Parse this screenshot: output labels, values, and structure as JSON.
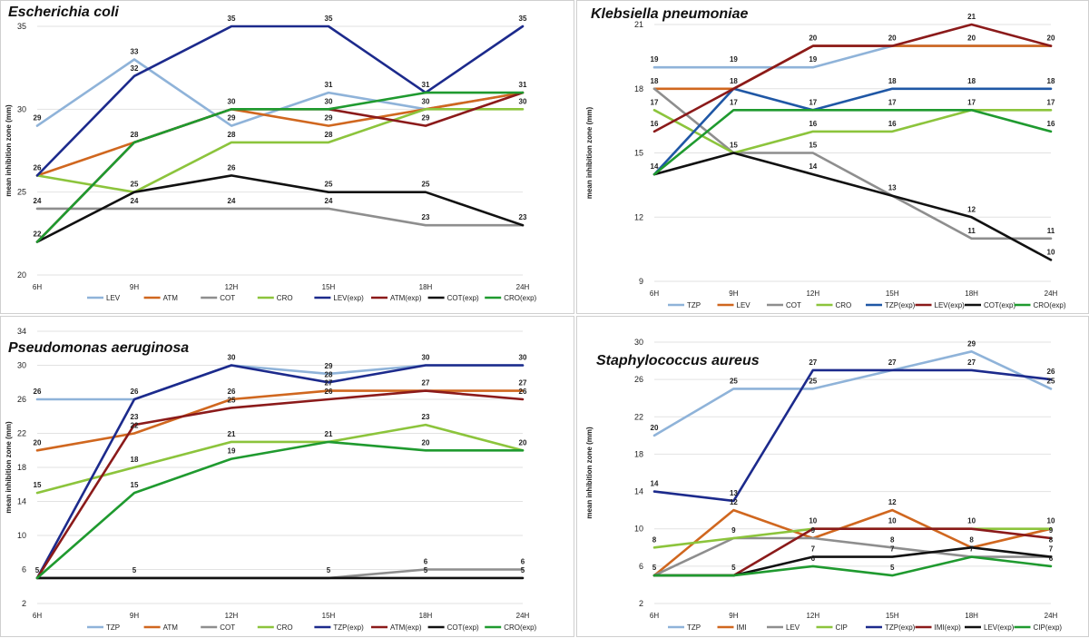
{
  "chart_data": [
    {
      "type": "line",
      "title": "Escherichia coli",
      "ylabel": "mean inhibition zone (mm)",
      "xlabel": "",
      "x": [
        "6H",
        "9H",
        "12H",
        "15H",
        "18H",
        "24H"
      ],
      "ylim": [
        20,
        35
      ],
      "yticks": [
        20,
        25,
        30,
        35
      ],
      "grid": true,
      "legend": "bottom",
      "series": [
        {
          "name": "LEV",
          "color": "#8fb3d9",
          "values": [
            29,
            33,
            29,
            31,
            30,
            31
          ]
        },
        {
          "name": "ATM",
          "color": "#d0671f",
          "values": [
            26,
            28,
            30,
            29,
            30,
            31
          ]
        },
        {
          "name": "COT",
          "color": "#8e8e8e",
          "values": [
            24,
            24,
            24,
            24,
            23,
            23
          ]
        },
        {
          "name": "CRO",
          "color": "#8cc43c",
          "values": [
            26,
            25,
            28,
            28,
            30,
            30
          ]
        },
        {
          "name": "LEV(exp)",
          "color": "#1c2a8c",
          "values": [
            26,
            32,
            35,
            35,
            31,
            35
          ]
        },
        {
          "name": "ATM(exp)",
          "color": "#8b1a1a",
          "values": [
            22,
            28,
            30,
            30,
            29,
            31
          ]
        },
        {
          "name": "COT(exp)",
          "color": "#111111",
          "values": [
            22,
            25,
            26,
            25,
            25,
            23
          ]
        },
        {
          "name": "CRO(exp)",
          "color": "#1f9a2f",
          "values": [
            22,
            28,
            30,
            30,
            31,
            31
          ]
        }
      ],
      "labels": [
        {
          "x": "6H",
          "text": "29"
        },
        {
          "x": "6H",
          "text": "26"
        },
        {
          "x": "6H",
          "text": "24"
        },
        {
          "x": "6H",
          "text": "22"
        },
        {
          "x": "9H",
          "text": "33"
        },
        {
          "x": "9H",
          "text": "32"
        },
        {
          "x": "9H",
          "text": "28"
        },
        {
          "x": "9H",
          "text": "25"
        },
        {
          "x": "9H",
          "text": "24"
        },
        {
          "x": "12H",
          "text": "35"
        },
        {
          "x": "12H",
          "text": "30"
        },
        {
          "x": "12H",
          "text": "29"
        },
        {
          "x": "12H",
          "text": "28"
        },
        {
          "x": "12H",
          "text": "26"
        },
        {
          "x": "12H",
          "text": "24"
        },
        {
          "x": "15H",
          "text": "35"
        },
        {
          "x": "15H",
          "text": "31"
        },
        {
          "x": "15H",
          "text": "30"
        },
        {
          "x": "15H",
          "text": "29"
        },
        {
          "x": "15H",
          "text": "28"
        },
        {
          "x": "15H",
          "text": "25"
        },
        {
          "x": "15H",
          "text": "24"
        },
        {
          "x": "18H",
          "text": "31"
        },
        {
          "x": "18H",
          "text": "30"
        },
        {
          "x": "18H",
          "text": "29"
        },
        {
          "x": "18H",
          "text": "25"
        },
        {
          "x": "18H",
          "text": "23"
        },
        {
          "x": "24H",
          "text": "35"
        },
        {
          "x": "24H",
          "text": "31"
        },
        {
          "x": "24H",
          "text": "30"
        },
        {
          "x": "24H",
          "text": "23"
        }
      ]
    },
    {
      "type": "line",
      "title": "Klebsiella pneumoniae",
      "ylabel": "mean inhibition zone (mm)",
      "xlabel": "",
      "x": [
        "6H",
        "9H",
        "12H",
        "15H",
        "18H",
        "24H"
      ],
      "ylim": [
        9,
        21
      ],
      "yticks": [
        9,
        12,
        15,
        18,
        21
      ],
      "grid": true,
      "legend": "bottom",
      "series": [
        {
          "name": "TZP",
          "color": "#8fb3d9",
          "values": [
            19,
            19,
            19,
            20,
            20,
            20
          ]
        },
        {
          "name": "LEV",
          "color": "#d0671f",
          "values": [
            18,
            18,
            20,
            20,
            20,
            20
          ]
        },
        {
          "name": "COT",
          "color": "#8e8e8e",
          "values": [
            18,
            15,
            15,
            13,
            11,
            11
          ]
        },
        {
          "name": "CRO",
          "color": "#8cc43c",
          "values": [
            17,
            15,
            16,
            16,
            17,
            17
          ]
        },
        {
          "name": "TZP(exp)",
          "color": "#1f57a5",
          "values": [
            14,
            18,
            17,
            18,
            18,
            18
          ]
        },
        {
          "name": "LEV(exp)",
          "color": "#8b1a1a",
          "values": [
            16,
            18,
            20,
            20,
            21,
            20
          ]
        },
        {
          "name": "COT(exp)",
          "color": "#111111",
          "values": [
            14,
            15,
            14,
            13,
            12,
            10
          ]
        },
        {
          "name": "CRO(exp)",
          "color": "#1f9a2f",
          "values": [
            14,
            17,
            17,
            17,
            17,
            16
          ]
        }
      ],
      "labels": [
        {
          "x": "6H",
          "text": "19"
        },
        {
          "x": "6H",
          "text": "18"
        },
        {
          "x": "6H",
          "text": "17"
        },
        {
          "x": "6H",
          "text": "16"
        },
        {
          "x": "6H",
          "text": "14"
        },
        {
          "x": "9H",
          "text": "19"
        },
        {
          "x": "9H",
          "text": "18"
        },
        {
          "x": "9H",
          "text": "17"
        },
        {
          "x": "9H",
          "text": "15"
        },
        {
          "x": "12H",
          "text": "20"
        },
        {
          "x": "12H",
          "text": "19"
        },
        {
          "x": "12H",
          "text": "17"
        },
        {
          "x": "12H",
          "text": "16"
        },
        {
          "x": "12H",
          "text": "15"
        },
        {
          "x": "12H",
          "text": "14"
        },
        {
          "x": "15H",
          "text": "20"
        },
        {
          "x": "15H",
          "text": "18"
        },
        {
          "x": "15H",
          "text": "17"
        },
        {
          "x": "15H",
          "text": "16"
        },
        {
          "x": "15H",
          "text": "13"
        },
        {
          "x": "18H",
          "text": "21"
        },
        {
          "x": "18H",
          "text": "20"
        },
        {
          "x": "18H",
          "text": "18"
        },
        {
          "x": "18H",
          "text": "17"
        },
        {
          "x": "18H",
          "text": "12"
        },
        {
          "x": "18H",
          "text": "11"
        },
        {
          "x": "24H",
          "text": "20"
        },
        {
          "x": "24H",
          "text": "18"
        },
        {
          "x": "24H",
          "text": "17"
        },
        {
          "x": "24H",
          "text": "16"
        },
        {
          "x": "24H",
          "text": "11"
        },
        {
          "x": "24H",
          "text": "10"
        }
      ]
    },
    {
      "type": "line",
      "title": "Pseudomonas aeruginosa",
      "ylabel": "mean inhibition zone (mm)",
      "xlabel": "",
      "x": [
        "6H",
        "9H",
        "12H",
        "15H",
        "18H",
        "24H"
      ],
      "ylim": [
        2,
        34
      ],
      "yticks": [
        2,
        6,
        10,
        14,
        18,
        22,
        26,
        30,
        34
      ],
      "grid": true,
      "legend": "bottom",
      "series": [
        {
          "name": "TZP",
          "color": "#8fb3d9",
          "values": [
            26,
            26,
            30,
            29,
            30,
            30
          ]
        },
        {
          "name": "ATM",
          "color": "#d0671f",
          "values": [
            20,
            22,
            26,
            27,
            27,
            27
          ]
        },
        {
          "name": "COT",
          "color": "#8e8e8e",
          "values": [
            5,
            5,
            5,
            5,
            6,
            6
          ]
        },
        {
          "name": "CRO",
          "color": "#8cc43c",
          "values": [
            15,
            18,
            21,
            21,
            23,
            20
          ]
        },
        {
          "name": "TZP(exp)",
          "color": "#1c2a8c",
          "values": [
            5,
            26,
            30,
            28,
            30,
            30
          ]
        },
        {
          "name": "ATM(exp)",
          "color": "#8b1a1a",
          "values": [
            5,
            23,
            25,
            26,
            27,
            26
          ]
        },
        {
          "name": "COT(exp)",
          "color": "#111111",
          "values": [
            5,
            5,
            5,
            5,
            5,
            5
          ]
        },
        {
          "name": "CRO(exp)",
          "color": "#1f9a2f",
          "values": [
            5,
            15,
            19,
            21,
            20,
            20
          ]
        }
      ],
      "labels": [
        {
          "x": "6H",
          "text": "26"
        },
        {
          "x": "6H",
          "text": "20"
        },
        {
          "x": "6H",
          "text": "15"
        },
        {
          "x": "6H",
          "text": "5"
        },
        {
          "x": "9H",
          "text": "26"
        },
        {
          "x": "9H",
          "text": "23"
        },
        {
          "x": "9H",
          "text": "22"
        },
        {
          "x": "9H",
          "text": "18"
        },
        {
          "x": "9H",
          "text": "15"
        },
        {
          "x": "9H",
          "text": "5"
        },
        {
          "x": "12H",
          "text": "30"
        },
        {
          "x": "12H",
          "text": "26"
        },
        {
          "x": "12H",
          "text": "25"
        },
        {
          "x": "12H",
          "text": "21"
        },
        {
          "x": "12H",
          "text": "19"
        },
        {
          "x": "15H",
          "text": "29"
        },
        {
          "x": "15H",
          "text": "28"
        },
        {
          "x": "15H",
          "text": "27"
        },
        {
          "x": "15H",
          "text": "26"
        },
        {
          "x": "15H",
          "text": "21"
        },
        {
          "x": "15H",
          "text": "5"
        },
        {
          "x": "18H",
          "text": "30"
        },
        {
          "x": "18H",
          "text": "27"
        },
        {
          "x": "18H",
          "text": "23"
        },
        {
          "x": "18H",
          "text": "20"
        },
        {
          "x": "18H",
          "text": "6"
        },
        {
          "x": "18H",
          "text": "5"
        },
        {
          "x": "24H",
          "text": "30"
        },
        {
          "x": "24H",
          "text": "27"
        },
        {
          "x": "24H",
          "text": "26"
        },
        {
          "x": "24H",
          "text": "20"
        },
        {
          "x": "24H",
          "text": "6"
        },
        {
          "x": "24H",
          "text": "5"
        }
      ]
    },
    {
      "type": "line",
      "title": "Staphylococcus aureus",
      "ylabel": "mean inhibition zone (mm)",
      "xlabel": "",
      "x": [
        "6H",
        "9H",
        "12H",
        "15H",
        "18H",
        "24H"
      ],
      "ylim": [
        2,
        30
      ],
      "yticks": [
        2,
        6,
        10,
        14,
        18,
        22,
        26,
        30
      ],
      "grid": true,
      "legend": "bottom",
      "series": [
        {
          "name": "TZP",
          "color": "#8fb3d9",
          "values": [
            20,
            25,
            25,
            27,
            29,
            25
          ]
        },
        {
          "name": "IMI",
          "color": "#d0671f",
          "values": [
            5,
            12,
            9,
            12,
            8,
            10
          ]
        },
        {
          "name": "LEV",
          "color": "#8e8e8e",
          "values": [
            5,
            9,
            9,
            8,
            7,
            7
          ]
        },
        {
          "name": "CIP",
          "color": "#8cc43c",
          "values": [
            8,
            9,
            10,
            10,
            10,
            10
          ]
        },
        {
          "name": "TZP(exp)",
          "color": "#1c2a8c",
          "values": [
            14,
            13,
            27,
            27,
            27,
            26
          ]
        },
        {
          "name": "IMI(exp)",
          "color": "#8b1a1a",
          "values": [
            5,
            5,
            10,
            10,
            10,
            9
          ]
        },
        {
          "name": "LEV(exp)",
          "color": "#111111",
          "values": [
            5,
            5,
            7,
            7,
            8,
            7
          ]
        },
        {
          "name": "CIP(exp)",
          "color": "#1f9a2f",
          "values": [
            5,
            5,
            6,
            5,
            7,
            6
          ]
        }
      ],
      "labels": [
        {
          "x": "6H",
          "text": "20"
        },
        {
          "x": "6H",
          "text": "14"
        },
        {
          "x": "6H",
          "text": "8"
        },
        {
          "x": "6H",
          "text": "5"
        },
        {
          "x": "9H",
          "text": "25"
        },
        {
          "x": "9H",
          "text": "13"
        },
        {
          "x": "9H",
          "text": "12"
        },
        {
          "x": "9H",
          "text": "9"
        },
        {
          "x": "9H",
          "text": "5"
        },
        {
          "x": "12H",
          "text": "27"
        },
        {
          "x": "12H",
          "text": "25"
        },
        {
          "x": "12H",
          "text": "10"
        },
        {
          "x": "12H",
          "text": "9"
        },
        {
          "x": "12H",
          "text": "7"
        },
        {
          "x": "12H",
          "text": "6"
        },
        {
          "x": "15H",
          "text": "27"
        },
        {
          "x": "15H",
          "text": "12"
        },
        {
          "x": "15H",
          "text": "10"
        },
        {
          "x": "15H",
          "text": "8"
        },
        {
          "x": "15H",
          "text": "7"
        },
        {
          "x": "15H",
          "text": "5"
        },
        {
          "x": "18H",
          "text": "29"
        },
        {
          "x": "18H",
          "text": "27"
        },
        {
          "x": "18H",
          "text": "10"
        },
        {
          "x": "18H",
          "text": "8"
        },
        {
          "x": "18H",
          "text": "7"
        },
        {
          "x": "24H",
          "text": "26"
        },
        {
          "x": "24H",
          "text": "25"
        },
        {
          "x": "24H",
          "text": "10"
        },
        {
          "x": "24H",
          "text": "9"
        },
        {
          "x": "24H",
          "text": "8"
        },
        {
          "x": "24H",
          "text": "7"
        },
        {
          "x": "24H",
          "text": "6"
        }
      ]
    }
  ]
}
